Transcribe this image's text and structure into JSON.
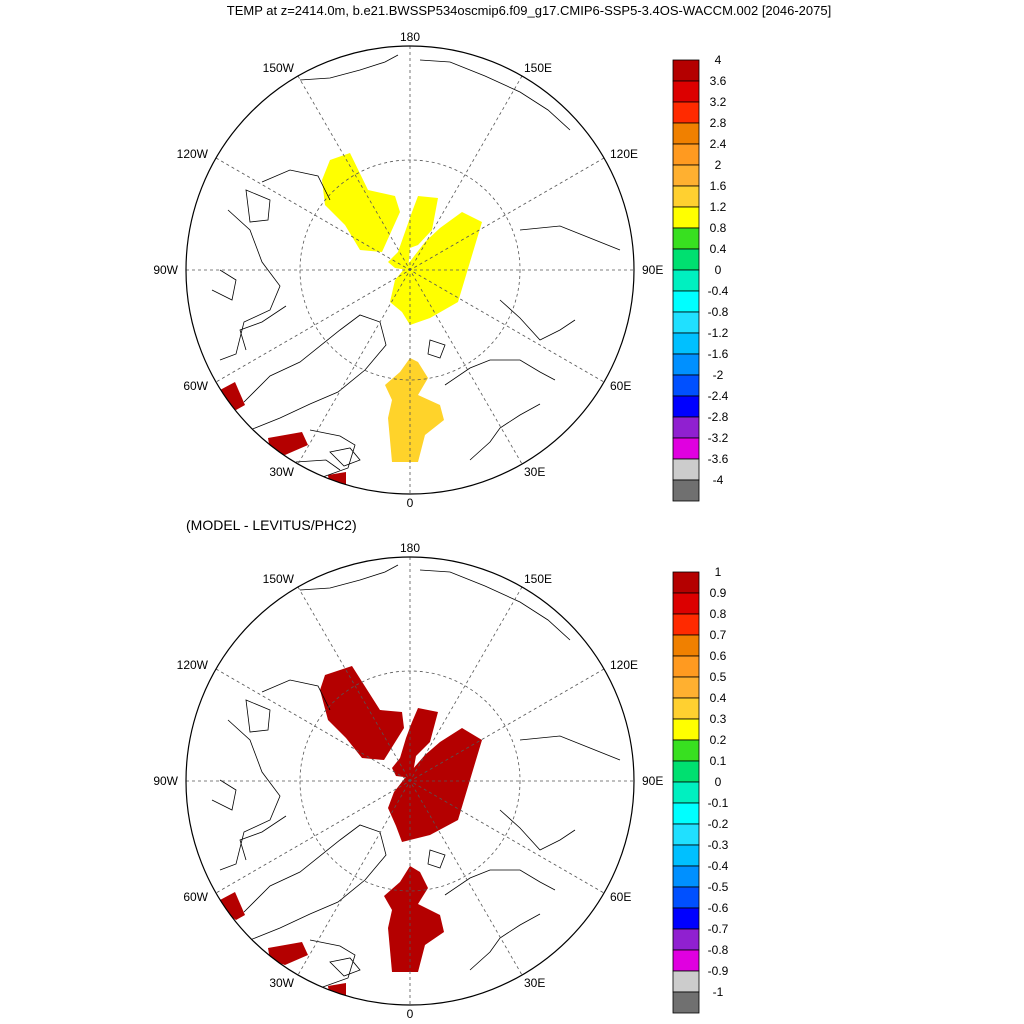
{
  "title": "TEMP at z=2414.0m, b.e21.BWSSP534oscmip6.f09_g17.CMIP6-SSP5-3.4OS-WACCM.002 [2046-2075]",
  "subtitle": "(MODEL - LEVITUS/PHC2)",
  "longitude_labels": [
    "180",
    "150E",
    "120E",
    "90E",
    "60E",
    "30E",
    "0",
    "30W",
    "60W",
    "90W",
    "120W",
    "150W"
  ],
  "top_colorbar": {
    "labels": [
      "4",
      "3.6",
      "3.2",
      "2.8",
      "2.4",
      "2",
      "1.6",
      "1.2",
      "0.8",
      "0.4",
      "0",
      "-0.4",
      "-0.8",
      "-1.2",
      "-1.6",
      "-2",
      "-2.4",
      "-2.8",
      "-3.2",
      "-3.6",
      "-4"
    ]
  },
  "bottom_colorbar": {
    "labels": [
      "1",
      "0.9",
      "0.8",
      "0.7",
      "0.6",
      "0.5",
      "0.4",
      "0.3",
      "0.2",
      "0.1",
      "0",
      "-0.1",
      "-0.2",
      "-0.3",
      "-0.4",
      "-0.5",
      "-0.6",
      "-0.7",
      "-0.8",
      "-0.9",
      "-1"
    ]
  },
  "colors": [
    "#b40000",
    "#dc0000",
    "#ff2a00",
    "#f08000",
    "#ff9a20",
    "#ffb030",
    "#ffd030",
    "#ffff00",
    "#38e020",
    "#00e070",
    "#00f0c0",
    "#00ffff",
    "#20e0ff",
    "#00c0ff",
    "#0090ff",
    "#0050ff",
    "#0000ff",
    "#9020d0",
    "#e000e0",
    "#cccccc",
    "#707070"
  ],
  "top_field_color": "#ffff00",
  "top_field_color_2": "#ffd32a",
  "bottom_field_color": "#b40000"
}
